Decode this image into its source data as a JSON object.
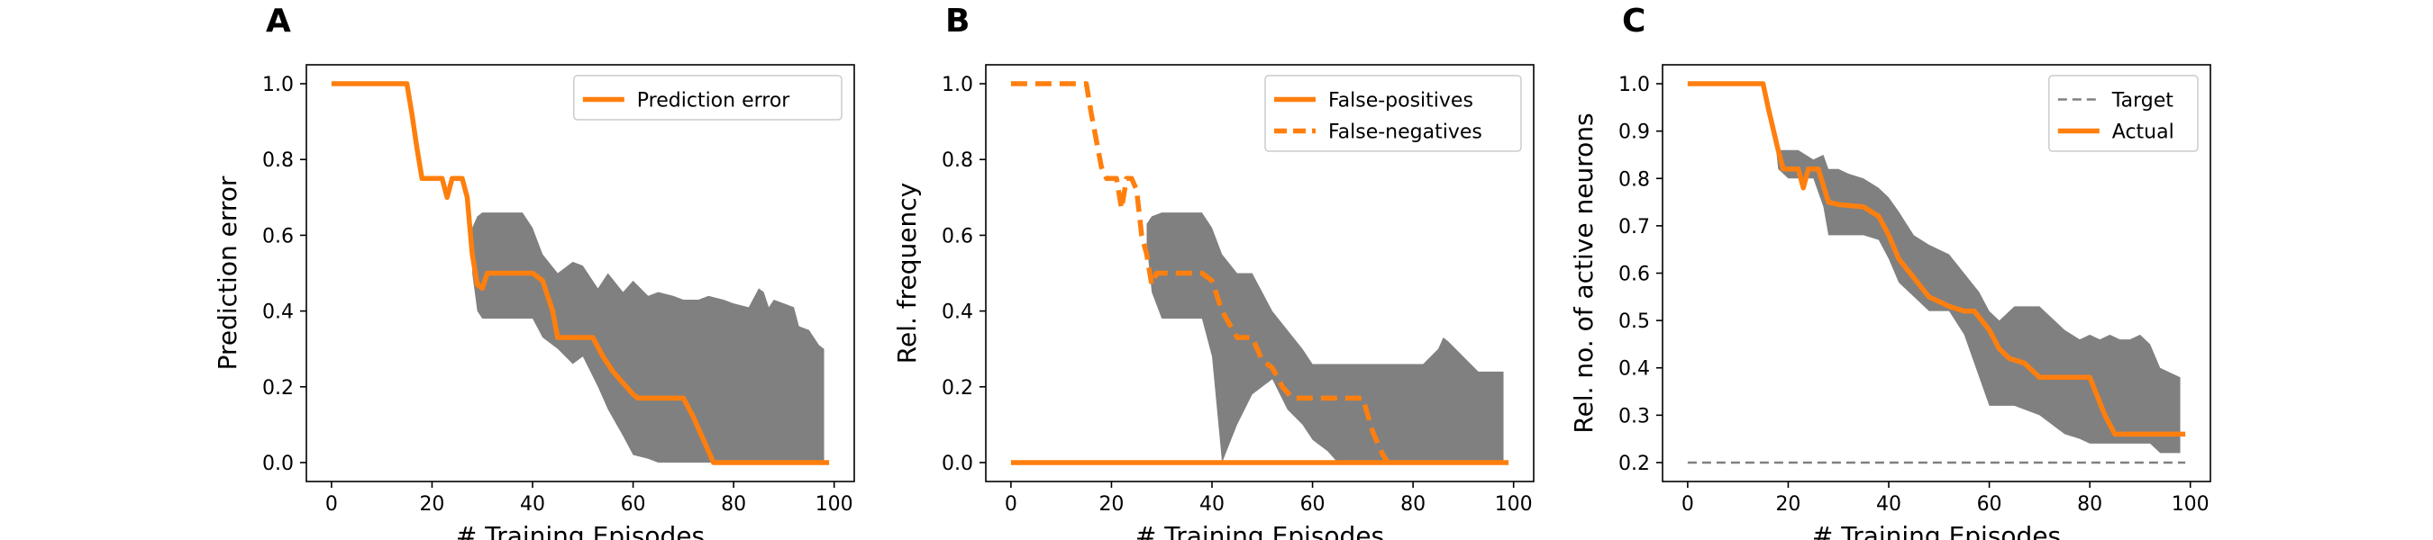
{
  "colors": {
    "series": "#ff7f0e",
    "band": "#808080",
    "target": "#808080",
    "axis": "#000000"
  },
  "chart_data": [
    {
      "panel_letter": "A",
      "type": "line",
      "xlabel": "# Training Episodes",
      "ylabel": "Prediction error",
      "xlim": [
        -5,
        104
      ],
      "ylim": [
        -0.05,
        1.05
      ],
      "xticks": [
        0,
        20,
        40,
        60,
        80,
        100
      ],
      "yticks": [
        0.0,
        0.2,
        0.4,
        0.6,
        0.8,
        1.0
      ],
      "ytick_labels": [
        "0.0",
        "0.2",
        "0.4",
        "0.6",
        "0.8",
        "1.0"
      ],
      "legend_position": "top-right",
      "grid": false,
      "series": [
        {
          "name": "Prediction error",
          "style": "solid",
          "x": [
            0,
            15,
            16,
            17,
            18,
            22,
            23,
            24,
            26,
            27,
            28,
            29,
            30,
            31,
            32,
            38,
            40,
            42,
            44,
            45,
            52,
            54,
            56,
            60,
            61,
            70,
            72,
            76,
            99
          ],
          "y": [
            1.0,
            1.0,
            0.92,
            0.83,
            0.75,
            0.75,
            0.7,
            0.75,
            0.75,
            0.7,
            0.55,
            0.47,
            0.46,
            0.5,
            0.5,
            0.5,
            0.5,
            0.48,
            0.4,
            0.33,
            0.33,
            0.28,
            0.24,
            0.18,
            0.17,
            0.17,
            0.12,
            0.0,
            0.0
          ]
        }
      ],
      "band": {
        "x": [
          28,
          29,
          30,
          33,
          38,
          40,
          42,
          45,
          48,
          50,
          53,
          55,
          58,
          60,
          63,
          65,
          68,
          70,
          73,
          75,
          78,
          80,
          83,
          85,
          86,
          87,
          88,
          90,
          92,
          93,
          95,
          97,
          98
        ],
        "upper": [
          0.62,
          0.65,
          0.66,
          0.66,
          0.66,
          0.62,
          0.55,
          0.5,
          0.53,
          0.52,
          0.46,
          0.5,
          0.45,
          0.48,
          0.44,
          0.45,
          0.44,
          0.43,
          0.43,
          0.44,
          0.43,
          0.42,
          0.41,
          0.46,
          0.45,
          0.41,
          0.43,
          0.42,
          0.41,
          0.36,
          0.35,
          0.31,
          0.3
        ],
        "lower": [
          0.5,
          0.4,
          0.38,
          0.38,
          0.38,
          0.38,
          0.33,
          0.3,
          0.26,
          0.28,
          0.2,
          0.14,
          0.07,
          0.02,
          0.01,
          0.0,
          0.0,
          0.0,
          0.0,
          0.0,
          0.0,
          0.0,
          0.0,
          0.0,
          0.0,
          0.0,
          0.0,
          0.0,
          0.0,
          0.0,
          0.0,
          0.0,
          0.0
        ]
      }
    },
    {
      "panel_letter": "B",
      "type": "line",
      "xlabel": "# Training Episodes",
      "ylabel": "Rel. frequency",
      "xlim": [
        -5,
        104
      ],
      "ylim": [
        -0.05,
        1.05
      ],
      "xticks": [
        0,
        20,
        40,
        60,
        80,
        100
      ],
      "yticks": [
        0.0,
        0.2,
        0.4,
        0.6,
        0.8,
        1.0
      ],
      "ytick_labels": [
        "0.0",
        "0.2",
        "0.4",
        "0.6",
        "0.8",
        "1.0"
      ],
      "legend_position": "top-right",
      "grid": false,
      "series": [
        {
          "name": "False-positives",
          "style": "solid",
          "x": [
            0,
            99
          ],
          "y": [
            0.0,
            0.0
          ]
        },
        {
          "name": "False-negatives",
          "style": "dashed",
          "x": [
            0,
            15,
            16,
            18,
            19,
            21,
            22,
            23,
            24,
            25,
            26,
            27,
            28,
            29,
            30,
            32,
            38,
            40,
            42,
            45,
            48,
            50,
            52,
            54,
            56,
            60,
            70,
            72,
            74,
            75
          ],
          "y": [
            1.0,
            1.0,
            0.92,
            0.78,
            0.75,
            0.75,
            0.67,
            0.75,
            0.75,
            0.72,
            0.6,
            0.55,
            0.47,
            0.5,
            0.5,
            0.5,
            0.5,
            0.48,
            0.4,
            0.33,
            0.33,
            0.27,
            0.25,
            0.2,
            0.17,
            0.17,
            0.17,
            0.08,
            0.02,
            0.0
          ]
        }
      ],
      "band": {
        "x": [
          27,
          28,
          30,
          33,
          38,
          40,
          42,
          45,
          48,
          50,
          52,
          55,
          58,
          60,
          63,
          65,
          70,
          75,
          78,
          80,
          82,
          85,
          86,
          87,
          90,
          93,
          95,
          98
        ],
        "upper": [
          0.63,
          0.65,
          0.66,
          0.66,
          0.66,
          0.62,
          0.55,
          0.5,
          0.5,
          0.45,
          0.4,
          0.35,
          0.3,
          0.26,
          0.26,
          0.26,
          0.26,
          0.26,
          0.26,
          0.26,
          0.26,
          0.3,
          0.33,
          0.32,
          0.28,
          0.24,
          0.24,
          0.24
        ],
        "lower": [
          0.58,
          0.45,
          0.38,
          0.38,
          0.38,
          0.28,
          0.0,
          0.1,
          0.18,
          0.2,
          0.22,
          0.14,
          0.1,
          0.06,
          0.03,
          0.0,
          0.0,
          0.0,
          0.0,
          0.0,
          0.0,
          0.0,
          0.0,
          0.0,
          0.0,
          0.0,
          0.0,
          0.0
        ]
      }
    },
    {
      "panel_letter": "C",
      "type": "line",
      "xlabel": "# Training Episodes",
      "ylabel": "Rel. no. of active neurons",
      "xlim": [
        -5,
        104
      ],
      "ylim": [
        0.16,
        1.04
      ],
      "xticks": [
        0,
        20,
        40,
        60,
        80,
        100
      ],
      "yticks": [
        0.2,
        0.3,
        0.4,
        0.5,
        0.6,
        0.7,
        0.8,
        0.9,
        1.0
      ],
      "ytick_labels": [
        "0.2",
        "0.3",
        "0.4",
        "0.5",
        "0.6",
        "0.7",
        "0.8",
        "0.9",
        "1.0"
      ],
      "legend_position": "top-right",
      "grid": false,
      "series": [
        {
          "name": "Target",
          "style": "dashed",
          "thin": true,
          "x": [
            0,
            99
          ],
          "y": [
            0.2,
            0.2
          ]
        },
        {
          "name": "Actual",
          "style": "solid",
          "x": [
            0,
            15,
            16,
            18,
            19,
            22,
            23,
            24,
            26,
            28,
            30,
            35,
            38,
            40,
            42,
            45,
            48,
            52,
            55,
            57,
            60,
            62,
            64,
            67,
            70,
            73,
            75,
            80,
            83,
            85,
            99
          ],
          "y": [
            1.0,
            1.0,
            0.95,
            0.86,
            0.82,
            0.82,
            0.78,
            0.82,
            0.82,
            0.75,
            0.745,
            0.74,
            0.72,
            0.68,
            0.63,
            0.59,
            0.55,
            0.53,
            0.52,
            0.52,
            0.48,
            0.44,
            0.42,
            0.41,
            0.38,
            0.38,
            0.38,
            0.38,
            0.3,
            0.26,
            0.26
          ]
        }
      ],
      "band": {
        "x": [
          15,
          17,
          18,
          20,
          22,
          25,
          27,
          28,
          30,
          32,
          35,
          38,
          40,
          42,
          45,
          48,
          50,
          52,
          55,
          58,
          60,
          62,
          65,
          70,
          75,
          78,
          80,
          82,
          84,
          86,
          88,
          90,
          92,
          94,
          96,
          98
        ],
        "upper": [
          1.0,
          0.92,
          0.86,
          0.86,
          0.86,
          0.84,
          0.85,
          0.82,
          0.82,
          0.81,
          0.8,
          0.78,
          0.76,
          0.73,
          0.68,
          0.66,
          0.65,
          0.64,
          0.6,
          0.56,
          0.52,
          0.5,
          0.53,
          0.53,
          0.48,
          0.46,
          0.47,
          0.46,
          0.47,
          0.46,
          0.46,
          0.47,
          0.45,
          0.4,
          0.39,
          0.38
        ],
        "lower": [
          1.0,
          0.92,
          0.82,
          0.8,
          0.8,
          0.8,
          0.74,
          0.68,
          0.68,
          0.68,
          0.68,
          0.67,
          0.63,
          0.58,
          0.55,
          0.52,
          0.52,
          0.52,
          0.47,
          0.38,
          0.32,
          0.32,
          0.32,
          0.3,
          0.26,
          0.25,
          0.24,
          0.24,
          0.24,
          0.24,
          0.24,
          0.24,
          0.24,
          0.22,
          0.22,
          0.22
        ]
      }
    }
  ]
}
